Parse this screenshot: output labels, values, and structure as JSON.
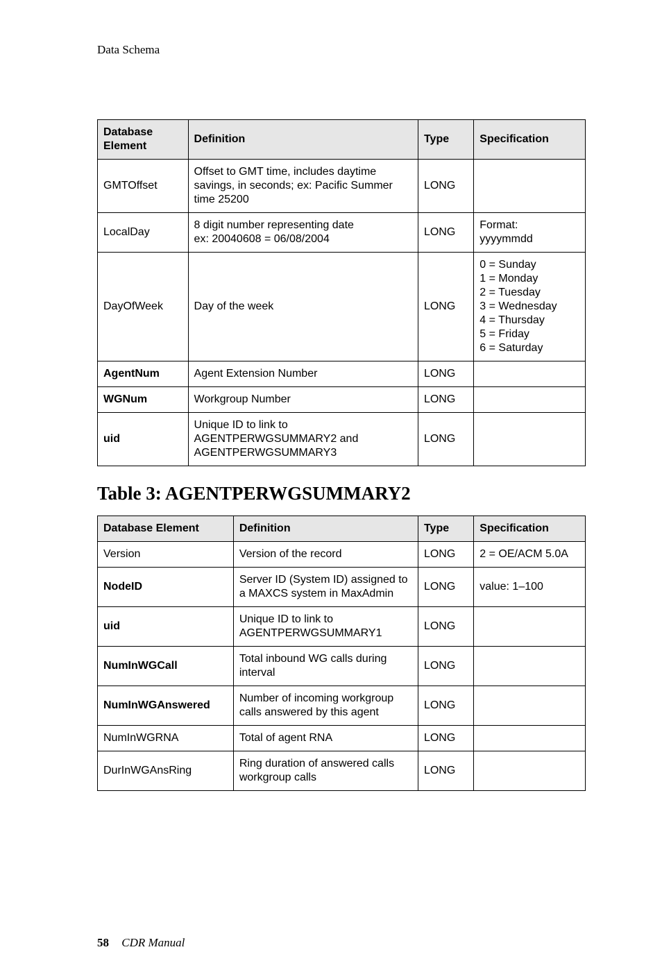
{
  "running_head": "Data Schema",
  "table1": {
    "headers": [
      "Database Element",
      "Definition",
      "Type",
      "Specification"
    ],
    "rows": [
      {
        "element": "GMTOffset",
        "element_bold": false,
        "definition": "Offset to GMT time, includes daytime savings, in seconds; ex: Pacific Summer time 25200",
        "type": "LONG",
        "spec_lines": []
      },
      {
        "element": "LocalDay",
        "element_bold": false,
        "definition": "8 digit number representing date\nex: 20040608 = 06/08/2004",
        "type": "LONG",
        "spec_lines": [
          "Format:",
          "yyyymmdd"
        ]
      },
      {
        "element": "DayOfWeek",
        "element_bold": false,
        "definition": "Day of the week",
        "type": "LONG",
        "spec_lines": [
          "0 = Sunday",
          "1 = Monday",
          "2 = Tuesday",
          "3 = Wednesday",
          "4 = Thursday",
          "5 = Friday",
          "6 = Saturday"
        ]
      },
      {
        "element": "AgentNum",
        "element_bold": true,
        "definition": "Agent Extension Number",
        "type": "LONG",
        "spec_lines": []
      },
      {
        "element": "WGNum",
        "element_bold": true,
        "definition": "Workgroup Number",
        "type": "LONG",
        "spec_lines": []
      },
      {
        "element": "uid",
        "element_bold": true,
        "definition": "Unique ID to link to AGENTPERWGSUMMARY2 and AGENTPERWGSUMMARY3",
        "type": "LONG",
        "spec_lines": []
      }
    ]
  },
  "section_title": "Table 3: AGENTPERWGSUMMARY2",
  "table2": {
    "headers": [
      "Database Element",
      "Definition",
      "Type",
      "Specification"
    ],
    "rows": [
      {
        "element": "Version",
        "element_bold": false,
        "definition": "Version of the record",
        "type": "LONG",
        "spec": "2 = OE/ACM 5.0A"
      },
      {
        "element": "NodeID",
        "element_bold": true,
        "definition": "Server ID (System ID) assigned to a MAXCS system in MaxAdmin",
        "type": "LONG",
        "spec": "value: 1–100"
      },
      {
        "element": "uid",
        "element_bold": true,
        "definition": "Unique ID to link to AGENTPERWGSUMMARY1",
        "type": "LONG",
        "spec": ""
      },
      {
        "element": "NumInWGCall",
        "element_bold": true,
        "definition": "Total inbound WG calls during interval",
        "type": "LONG",
        "spec": ""
      },
      {
        "element": "NumInWGAnswered",
        "element_bold": true,
        "definition": "Number of incoming workgroup calls answered by this agent",
        "type": "LONG",
        "spec": ""
      },
      {
        "element": "NumInWGRNA",
        "element_bold": false,
        "definition": "Total of agent RNA",
        "type": "LONG",
        "spec": ""
      },
      {
        "element": "DurInWGAnsRing",
        "element_bold": false,
        "definition": "Ring duration of answered calls workgroup calls",
        "type": "LONG",
        "spec": ""
      }
    ]
  },
  "footer": {
    "page": "58",
    "manual": "CDR Manual"
  }
}
